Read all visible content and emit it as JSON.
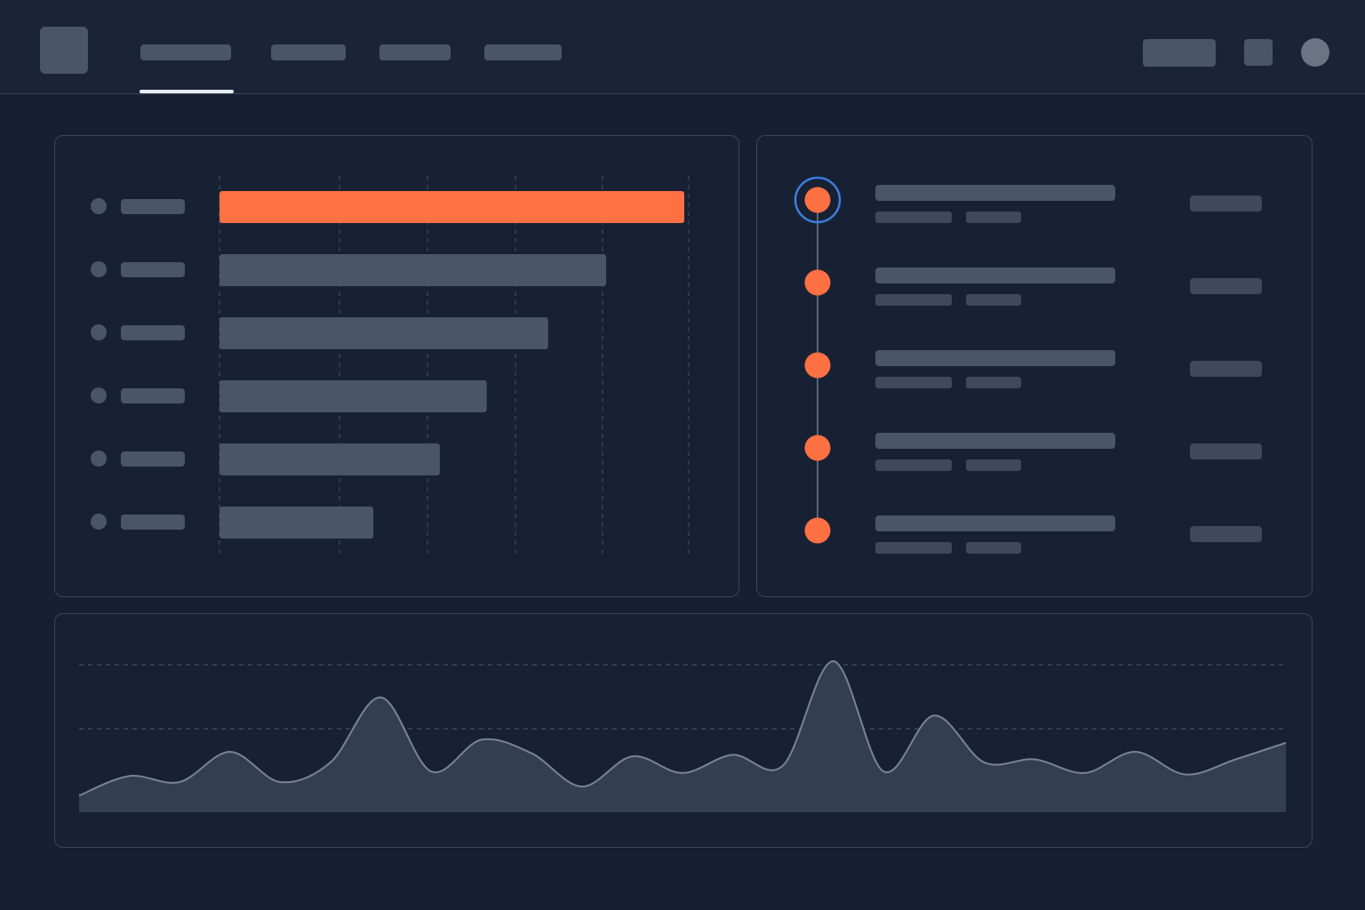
{
  "colors": {
    "background": "#172033",
    "panel_border": "#3a4558",
    "placeholder": "#4a5568",
    "accent": "#ff7043",
    "selection_ring": "#3b7ddd",
    "area_fill": "#343e52",
    "area_line": "#7a8396"
  },
  "topbar": {
    "nav_tabs": [
      {
        "active": true
      },
      {
        "active": false
      },
      {
        "active": false
      },
      {
        "active": false
      }
    ],
    "icons": [
      "app-logo-icon",
      "action-button",
      "square-icon",
      "avatar-icon"
    ]
  },
  "bar_panel": {
    "bars": [
      {
        "value": 1.0,
        "highlighted": true
      },
      {
        "value": 0.832,
        "highlighted": false
      },
      {
        "value": 0.707,
        "highlighted": false
      },
      {
        "value": 0.575,
        "highlighted": false
      },
      {
        "value": 0.474,
        "highlighted": false
      },
      {
        "value": 0.331,
        "highlighted": false
      }
    ]
  },
  "timeline_panel": {
    "items": [
      {
        "selected": true
      },
      {
        "selected": false
      },
      {
        "selected": false
      },
      {
        "selected": false
      },
      {
        "selected": false
      }
    ]
  },
  "area_panel": {
    "series": [
      0.11,
      0.24,
      0.2,
      0.4,
      0.2,
      0.33,
      0.76,
      0.27,
      0.48,
      0.39,
      0.17,
      0.37,
      0.26,
      0.38,
      0.31,
      1.0,
      0.27,
      0.64,
      0.33,
      0.35,
      0.26,
      0.4,
      0.25,
      0.35,
      0.46
    ]
  }
}
